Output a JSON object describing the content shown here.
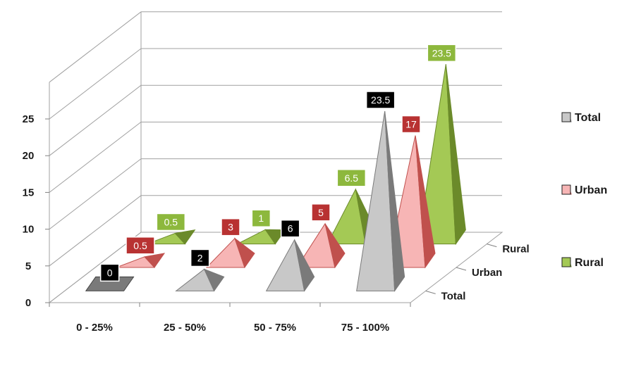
{
  "chart_data": {
    "type": "bar",
    "style": "3d-pyramid",
    "categories": [
      "0 - 25%",
      "25 - 50%",
      "50 - 75%",
      "75 - 100%"
    ],
    "series": [
      {
        "name": "Total",
        "values": [
          0,
          2,
          6,
          23.5
        ],
        "color": "#c8c8c8",
        "dark": "#7a7a7a",
        "label_bg": "#000000"
      },
      {
        "name": "Urban",
        "values": [
          0.5,
          3,
          5,
          17
        ],
        "color": "#f7b5b5",
        "dark": "#c0504d",
        "label_bg": "#b83232"
      },
      {
        "name": "Rural",
        "values": [
          0.5,
          1,
          6.5,
          23.5
        ],
        "color": "#a4c955",
        "dark": "#6b8a2a",
        "label_bg": "#8db83d"
      }
    ],
    "depth_labels": [
      "Total",
      "Urban",
      "Rural"
    ],
    "yticks": [
      0,
      5,
      10,
      15,
      20,
      25
    ],
    "ylim": [
      0,
      30
    ],
    "grid": true,
    "legend_position": "right"
  }
}
